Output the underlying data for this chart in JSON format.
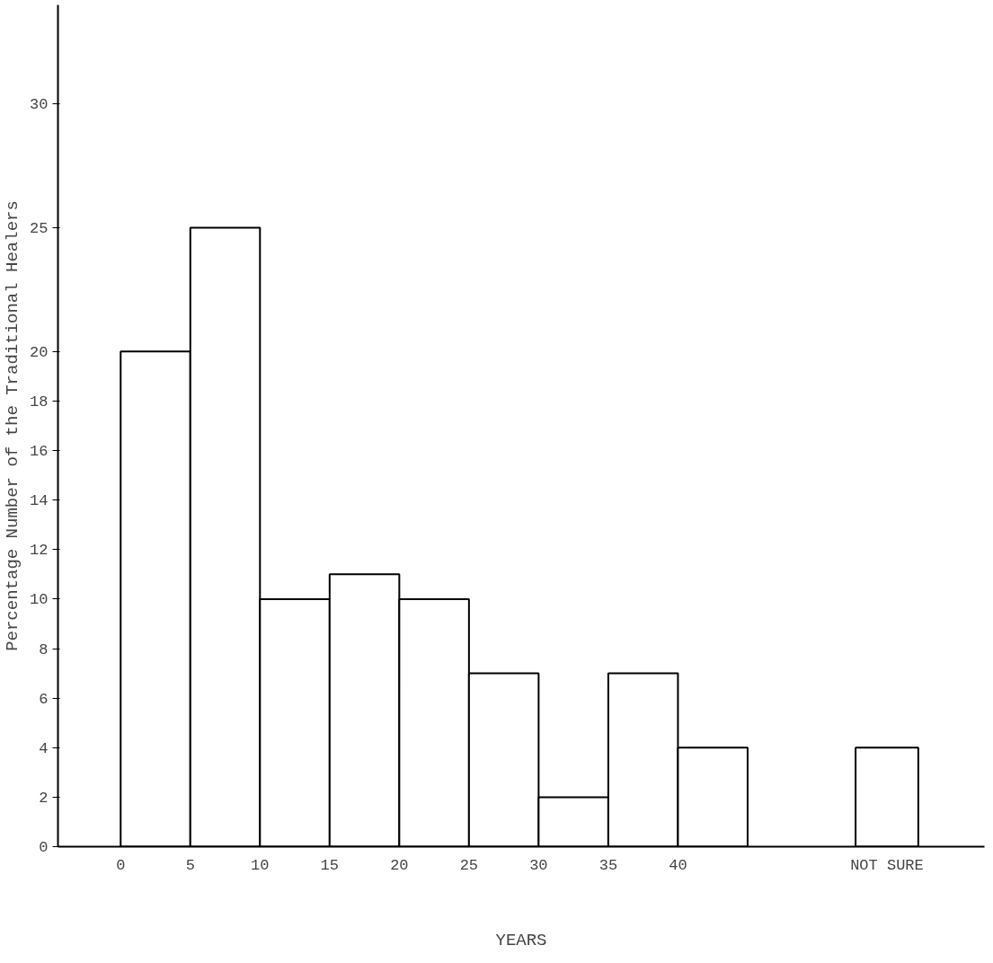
{
  "chart_data": {
    "type": "histogram",
    "xlabel": "YEARS",
    "ylabel": "Percentage Number of the Traditional Healers",
    "bins": [
      0,
      5,
      10,
      15,
      20,
      25,
      30,
      35,
      40,
      45
    ],
    "series": [
      {
        "color": "#ffffff",
        "values": [
          20,
          25,
          10,
          11,
          10,
          7,
          2,
          7,
          4
        ]
      },
      {
        "type": "bar",
        "color": "#ffffff",
        "x": [
          55
        ],
        "values": [
          4
        ]
      }
    ],
    "xlim": [
      -4.5,
      62
    ],
    "ylim": [
      0,
      34
    ],
    "xticks": [
      0,
      5,
      10,
      15,
      20,
      25,
      30,
      35,
      40,
      {
        "value": 55,
        "label": "NOT SURE"
      }
    ],
    "yticks": [
      0,
      2,
      4,
      6,
      8,
      10,
      12,
      14,
      16,
      18,
      20,
      25,
      30
    ],
    "grid": false
  }
}
